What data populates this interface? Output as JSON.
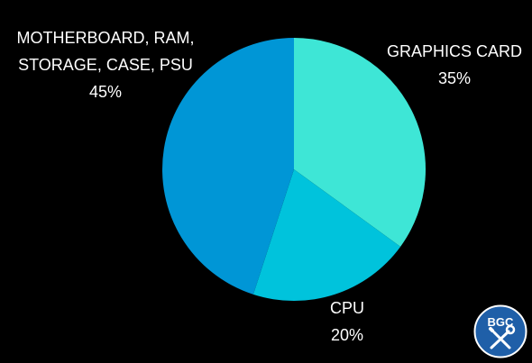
{
  "chart_data": {
    "type": "pie",
    "title": "",
    "slices": [
      {
        "label_lines": [
          "GRAPHICS CARD"
        ],
        "value": 35,
        "value_label": "35%",
        "color": "#3ee6d6"
      },
      {
        "label_lines": [
          "CPU"
        ],
        "value": 20,
        "value_label": "20%",
        "color": "#00c3dc"
      },
      {
        "label_lines": [
          "MOTHERBOARD, RAM,",
          "STORAGE, CASE, PSU"
        ],
        "value": 45,
        "value_label": "45%",
        "color": "#0096d6"
      }
    ],
    "start_angle": "12 o'clock",
    "direction": "clockwise",
    "legend": "none"
  },
  "logo": {
    "text": "BGC",
    "icon": "crossed-wrench-screwdriver-icon",
    "color": "#1f5fa8"
  },
  "background": "#000000"
}
